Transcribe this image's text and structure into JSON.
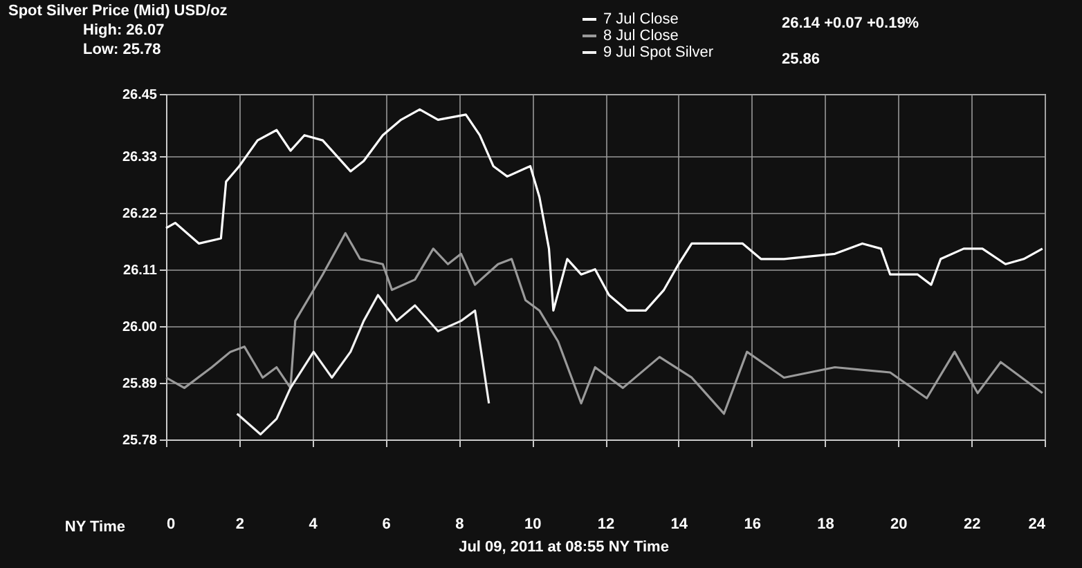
{
  "chart_data": {
    "type": "line",
    "title": "Spot Silver Price (Mid) USD/oz",
    "xlabel": "NY Time",
    "annotations": [
      "High: 26.07",
      "Low: 25.78",
      "26.14 +0.07 +0.19%",
      "25.86",
      "Jul 09, 2011 at 08:55 NY Time"
    ],
    "xlim": [
      0,
      24
    ],
    "xticks": [
      0,
      2,
      4,
      6,
      8,
      10,
      12,
      14,
      16,
      18,
      20,
      22,
      24
    ],
    "ylim": [
      25.78,
      26.45
    ],
    "yticks": [
      25.78,
      25.89,
      {
        "value": 26,
        "label": "26.00"
      },
      26.11,
      26.22,
      26.33,
      26.45
    ],
    "grid": true,
    "legend": "top right",
    "line_style": "solid",
    "marker": "none",
    "series": [
      {
        "name": "7 Jul Close",
        "color": "#ffffff",
        "x": [
          0,
          0.25,
          0.9,
          1.5,
          1.64,
          2.0,
          2.5,
          3.02,
          3.4,
          3.78,
          4.28,
          5.04,
          5.4,
          5.92,
          6.42,
          6.93,
          7.43,
          8.19,
          8.57,
          8.94,
          9.32,
          9.95,
          10.2,
          10.46,
          10.58,
          10.96,
          11.34,
          11.72,
          12.1,
          12.6,
          13.1,
          13.6,
          14.0,
          14.36,
          15.24,
          15.75,
          16.25,
          16.88,
          18.27,
          19.02,
          19.53,
          19.78,
          20.53,
          20.9,
          21.16,
          21.79,
          22.3,
          22.93,
          23.43,
          23.94
        ],
        "values": [
          26.19,
          26.2,
          26.16,
          26.17,
          26.28,
          26.31,
          26.36,
          26.38,
          26.34,
          26.37,
          26.36,
          26.3,
          26.32,
          26.37,
          26.4,
          26.42,
          26.4,
          26.41,
          26.37,
          26.31,
          26.29,
          26.31,
          26.25,
          26.15,
          26.03,
          26.13,
          26.1,
          26.11,
          26.06,
          26.03,
          26.03,
          26.07,
          26.12,
          26.16,
          26.16,
          26.16,
          26.13,
          26.13,
          26.14,
          26.16,
          26.15,
          26.1,
          26.1,
          26.08,
          26.13,
          26.15,
          26.15,
          26.12,
          26.13,
          26.15
        ]
      },
      {
        "name": "8 Jul Close",
        "color": "#9a9a9a",
        "x": [
          0,
          0.5,
          1.25,
          1.76,
          2.14,
          2.64,
          3.02,
          3.4,
          3.53,
          4.28,
          4.9,
          5.3,
          5.92,
          6.17,
          6.8,
          7.3,
          7.7,
          8.06,
          8.44,
          9.07,
          9.44,
          9.82,
          10.2,
          10.71,
          11.34,
          11.72,
          12.48,
          13.48,
          14.36,
          15.24,
          15.87,
          16.88,
          18.27,
          19.78,
          20.78,
          21.54,
          22.17,
          22.8,
          23.94
        ],
        "values": [
          25.9,
          25.88,
          25.92,
          25.95,
          25.96,
          25.9,
          25.92,
          25.88,
          26.01,
          26.1,
          26.18,
          26.13,
          26.12,
          26.07,
          26.09,
          26.15,
          26.12,
          26.14,
          26.08,
          26.12,
          26.13,
          26.05,
          26.03,
          25.97,
          25.85,
          25.92,
          25.88,
          25.94,
          25.9,
          25.83,
          25.95,
          25.9,
          25.92,
          25.91,
          25.86,
          25.95,
          25.87,
          25.93,
          25.87
        ]
      },
      {
        "name": "9 Jul Spot Silver",
        "color": "#f2f2f2",
        "x": [
          1.94,
          2.58,
          3.02,
          3.4,
          4.03,
          4.53,
          5.04,
          5.4,
          5.79,
          6.3,
          6.8,
          7.43,
          8.06,
          8.44,
          8.82
        ],
        "values": [
          25.83,
          25.79,
          25.82,
          25.88,
          25.95,
          25.9,
          25.95,
          26.01,
          26.06,
          26.01,
          26.04,
          25.99,
          26.01,
          26.03,
          25.85
        ]
      }
    ]
  }
}
